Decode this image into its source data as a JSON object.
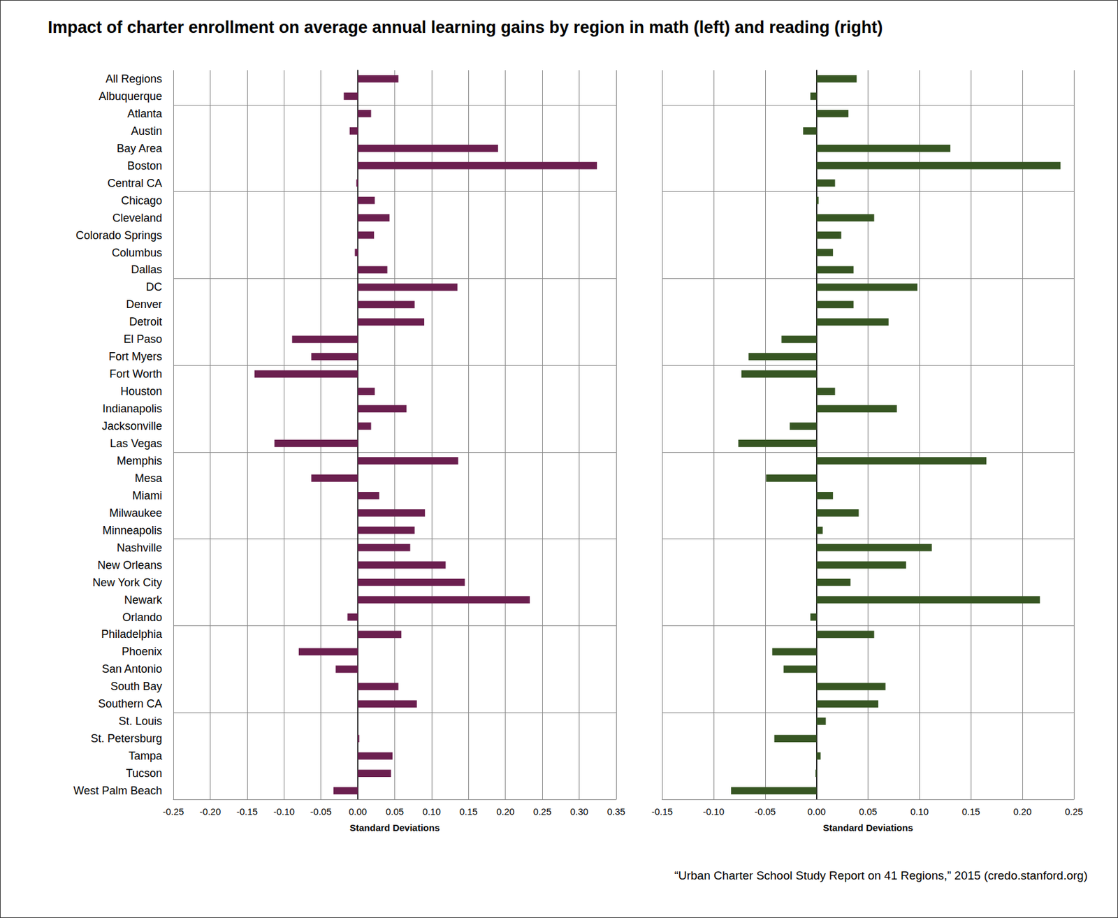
{
  "title": "Impact of charter enrollment on average annual learning gains by region in math (left) and reading (right)",
  "source": "“Urban Charter School Study Report on 41 Regions,” 2015 (credo.stanford.org)",
  "chart_data": [
    {
      "type": "bar",
      "orientation": "horizontal",
      "grid": true,
      "color": "#6b1f4f",
      "xlabel": "Standard Deviations",
      "categories": [
        "All Regions",
        "Albuquerque",
        "Atlanta",
        "Austin",
        "Bay Area",
        "Boston",
        "Central CA",
        "Chicago",
        "Cleveland",
        "Colorado Springs",
        "Columbus",
        "Dallas",
        "DC",
        "Denver",
        "Detroit",
        "El Paso",
        "Fort Myers",
        "Fort Worth",
        "Houston",
        "Indianapolis",
        "Jacksonville",
        "Las Vegas",
        "Memphis",
        "Mesa",
        "Miami",
        "Milwaukee",
        "Minneapolis",
        "Nashville",
        "New Orleans",
        "New York City",
        "Newark",
        "Orlando",
        "Philadelphia",
        "Phoenix",
        "San Antonio",
        "South Bay",
        "Southern CA",
        "St. Louis",
        "St. Petersburg",
        "Tampa",
        "Tucson",
        "West Palm Beach"
      ],
      "values": [
        0.055,
        -0.019,
        0.018,
        -0.011,
        0.19,
        0.324,
        -0.002,
        0.023,
        0.043,
        0.022,
        -0.004,
        0.04,
        0.135,
        0.077,
        0.09,
        -0.089,
        -0.063,
        -0.14,
        0.023,
        0.066,
        0.018,
        -0.113,
        0.136,
        -0.063,
        0.029,
        0.091,
        0.077,
        0.071,
        0.119,
        0.145,
        0.233,
        -0.014,
        0.059,
        -0.08,
        -0.03,
        0.055,
        0.08,
        0,
        0.002,
        0.047,
        0.045,
        -0.033
      ],
      "xlim": [
        -0.25,
        0.35
      ],
      "xticks": [
        -0.25,
        {
          "value": -0.2,
          "label": "-0.20"
        },
        -0.15,
        {
          "value": -0.1,
          "label": "-0.10"
        },
        -0.05,
        {
          "value": 0,
          "label": "0.00"
        },
        0.05,
        {
          "value": 0.1,
          "label": "0.10"
        },
        0.15,
        {
          "value": 0.2,
          "label": "0.20"
        },
        0.25,
        {
          "value": 0.3,
          "label": "0.30"
        },
        0.35
      ]
    },
    {
      "type": "bar",
      "orientation": "horizontal",
      "grid": true,
      "color": "#375623",
      "tick_labels": "x",
      "xlabel": "Standard Deviations",
      "categories": [
        "All Regions",
        "Albuquerque",
        "Atlanta",
        "Austin",
        "Bay Area",
        "Boston",
        "Central CA",
        "Chicago",
        "Cleveland",
        "Colorado Springs",
        "Columbus",
        "Dallas",
        "DC",
        "Denver",
        "Detroit",
        "El Paso",
        "Fort Myers",
        "Fort Worth",
        "Houston",
        "Indianapolis",
        "Jacksonville",
        "Las Vegas",
        "Memphis",
        "Mesa",
        "Miami",
        "Milwaukee",
        "Minneapolis",
        "Nashville",
        "New Orleans",
        "New York City",
        "Newark",
        "Orlando",
        "Philadelphia",
        "Phoenix",
        "San Antonio",
        "South Bay",
        "Southern CA",
        "St. Louis",
        "St. Petersburg",
        "Tampa",
        "Tucson",
        "West Palm Beach"
      ],
      "values": [
        0.039,
        -0.006,
        0.031,
        -0.013,
        0.13,
        0.237,
        0.018,
        0.002,
        0.056,
        0.024,
        0.016,
        0.036,
        0.098,
        0.036,
        0.07,
        -0.034,
        -0.066,
        -0.073,
        0.018,
        0.078,
        -0.026,
        -0.076,
        0.165,
        -0.049,
        0.016,
        0.041,
        0.006,
        0.112,
        0.087,
        0.033,
        0.217,
        -0.006,
        0.056,
        -0.043,
        -0.032,
        0.067,
        0.06,
        0.009,
        -0.041,
        0.004,
        -0.001,
        -0.083
      ],
      "xlim": [
        -0.15,
        0.25
      ],
      "xticks": [
        -0.15,
        {
          "value": -0.1,
          "label": "-0.10"
        },
        -0.05,
        {
          "value": 0,
          "label": "0.00"
        },
        0.05,
        {
          "value": 0.1,
          "label": "0.10"
        },
        0.15,
        {
          "value": 0.2,
          "label": "0.20"
        },
        0.25
      ]
    }
  ]
}
